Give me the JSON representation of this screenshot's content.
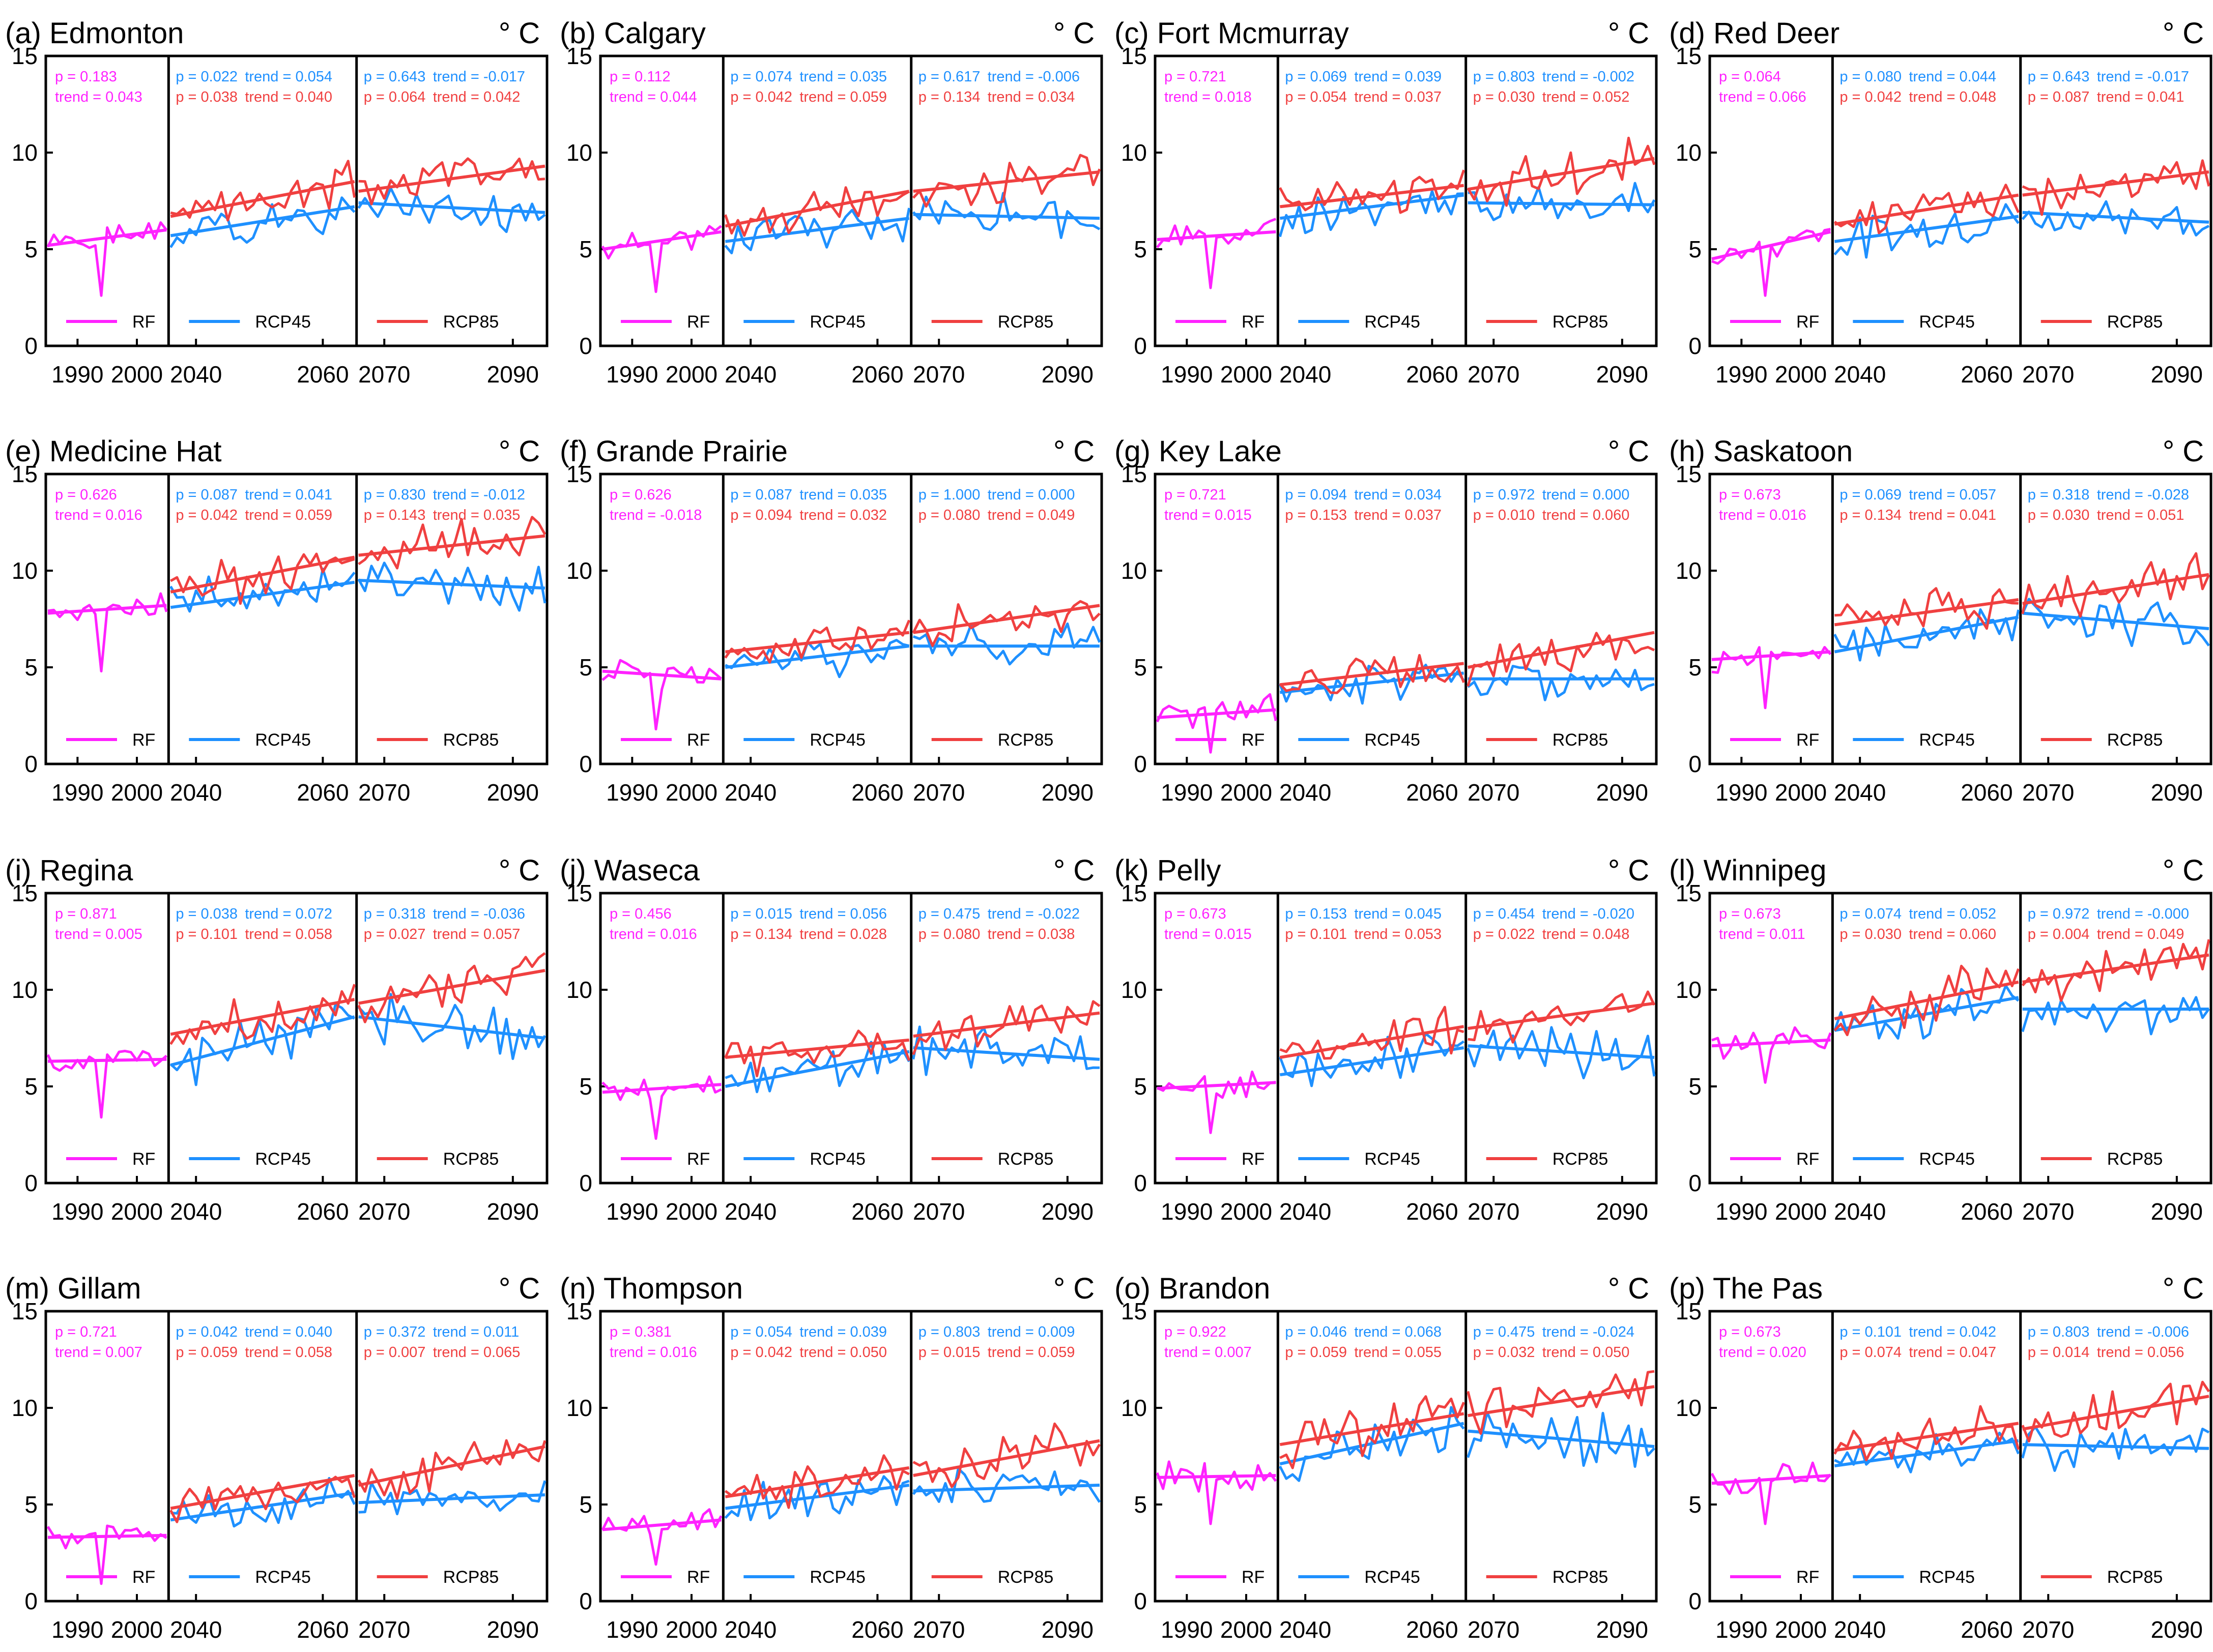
{
  "figure": {
    "unit": "° C",
    "colors": {
      "RF": "#ff22ff",
      "RCP45": "#1e90ff",
      "RCP85": "#f04040"
    },
    "legend": {
      "RF": "RF",
      "RCP45": "RCP45",
      "RCP85": "RCP85"
    },
    "stat_labels": {
      "p": "p = ",
      "trend": "trend = "
    },
    "periods": {
      "RF": {
        "start": 1985,
        "end": 2005,
        "ticks": [
          1990,
          2000
        ]
      },
      "RCP45": {
        "start": 2036,
        "end": 2065,
        "ticks": [
          2040,
          2060
        ]
      },
      "RCP85": {
        "start": 2066,
        "end": 2095,
        "ticks": [
          2070,
          2090
        ]
      }
    },
    "yticks": [
      0,
      5,
      10,
      15
    ]
  },
  "chart_data": [
    {
      "type": "line",
      "title": "(a) Edmonton",
      "xlabel": "",
      "ylabel": "° C",
      "ylim": [
        0,
        15
      ],
      "legend": "bottom",
      "rf": {
        "p": "0.183",
        "trend": "0.043",
        "seed": 1,
        "start": 5.2,
        "end": 6.0,
        "noise": 0.5,
        "drop": 2.6
      },
      "rcp45": {
        "p": "0.022",
        "trend": "0.054",
        "seed": 2,
        "start": 5.7,
        "end": 7.2,
        "noise": 0.9
      },
      "rcp85": {
        "p": "0.038",
        "trend": "0.040",
        "seed": 3,
        "start": 6.7,
        "end": 8.5,
        "noise": 0.9
      },
      "rcp45b": {
        "p": "0.643",
        "trend": "-0.017",
        "seed": 4,
        "start": 7.4,
        "end": 6.9,
        "noise": 0.9
      },
      "rcp85b": {
        "p": "0.064",
        "trend": "0.042",
        "seed": 5,
        "start": 8.0,
        "end": 9.3,
        "noise": 0.9
      }
    },
    {
      "type": "line",
      "title": "(b) Calgary",
      "xlabel": "",
      "ylabel": "° C",
      "ylim": [
        0,
        15
      ],
      "legend": "bottom",
      "rf": {
        "p": "0.112",
        "trend": "0.044",
        "seed": 11,
        "start": 5.0,
        "end": 5.9,
        "noise": 0.55,
        "drop": 2.8
      },
      "rcp45": {
        "p": "0.074",
        "trend": "0.035",
        "seed": 12,
        "start": 5.4,
        "end": 6.6,
        "noise": 0.9
      },
      "rcp85": {
        "p": "0.042",
        "trend": "0.059",
        "seed": 13,
        "start": 6.2,
        "end": 8.0,
        "noise": 0.9
      },
      "rcp45b": {
        "p": "0.617",
        "trend": "-0.006",
        "seed": 14,
        "start": 6.8,
        "end": 6.6,
        "noise": 0.9
      },
      "rcp85b": {
        "p": "0.134",
        "trend": "0.034",
        "seed": 15,
        "start": 8.0,
        "end": 9.0,
        "noise": 0.9
      }
    },
    {
      "type": "line",
      "title": "(c) Fort Mcmurray",
      "xlabel": "",
      "ylabel": "° C",
      "ylim": [
        0,
        15
      ],
      "legend": "bottom",
      "rf": {
        "p": "0.721",
        "trend": "0.018",
        "seed": 21,
        "start": 5.5,
        "end": 5.9,
        "noise": 0.6,
        "drop": 3.0
      },
      "rcp45": {
        "p": "0.069",
        "trend": "0.039",
        "seed": 22,
        "start": 6.6,
        "end": 7.8,
        "noise": 0.8
      },
      "rcp85": {
        "p": "0.054",
        "trend": "0.037",
        "seed": 23,
        "start": 7.2,
        "end": 8.3,
        "noise": 0.9
      },
      "rcp45b": {
        "p": "0.803",
        "trend": "-0.002",
        "seed": 24,
        "start": 7.4,
        "end": 7.3,
        "noise": 0.9
      },
      "rcp85b": {
        "p": "0.030",
        "trend": "0.052",
        "seed": 25,
        "start": 8.1,
        "end": 9.7,
        "noise": 1.0
      }
    },
    {
      "type": "line",
      "title": "(d) Red Deer",
      "xlabel": "",
      "ylabel": "° C",
      "ylim": [
        0,
        15
      ],
      "legend": "bottom",
      "rf": {
        "p": "0.064",
        "trend": "0.066",
        "seed": 31,
        "start": 4.5,
        "end": 5.9,
        "noise": 0.5,
        "drop": 2.6
      },
      "rcp45": {
        "p": "0.080",
        "trend": "0.044",
        "seed": 32,
        "start": 5.4,
        "end": 6.7,
        "noise": 0.9
      },
      "rcp85": {
        "p": "0.042",
        "trend": "0.048",
        "seed": 33,
        "start": 6.3,
        "end": 7.8,
        "noise": 0.9
      },
      "rcp45b": {
        "p": "0.643",
        "trend": "-0.017",
        "seed": 34,
        "start": 6.9,
        "end": 6.4,
        "noise": 0.9
      },
      "rcp85b": {
        "p": "0.087",
        "trend": "0.041",
        "seed": 35,
        "start": 7.8,
        "end": 9.0,
        "noise": 0.9
      }
    },
    {
      "type": "line",
      "title": "(e) Medicine Hat",
      "xlabel": "",
      "ylabel": "° C",
      "ylim": [
        0,
        15
      ],
      "legend": "bottom",
      "rf": {
        "p": "0.626",
        "trend": "0.016",
        "seed": 41,
        "start": 7.8,
        "end": 8.2,
        "noise": 0.6,
        "drop": 4.8
      },
      "rcp45": {
        "p": "0.087",
        "trend": "0.041",
        "seed": 42,
        "start": 8.1,
        "end": 9.4,
        "noise": 1.0
      },
      "rcp85": {
        "p": "0.042",
        "trend": "0.059",
        "seed": 43,
        "start": 8.9,
        "end": 10.7,
        "noise": 1.0
      },
      "rcp45b": {
        "p": "0.830",
        "trend": "-0.012",
        "seed": 44,
        "start": 9.5,
        "end": 9.1,
        "noise": 1.1
      },
      "rcp85b": {
        "p": "0.143",
        "trend": "0.035",
        "seed": 45,
        "start": 10.8,
        "end": 11.8,
        "noise": 1.0
      }
    },
    {
      "type": "line",
      "title": "(f) Grande Prairie",
      "xlabel": "",
      "ylabel": "° C",
      "ylim": [
        0,
        15
      ],
      "legend": "bottom",
      "rf": {
        "p": "0.626",
        "trend": "-0.018",
        "seed": 51,
        "start": 4.8,
        "end": 4.4,
        "noise": 0.6,
        "drop": 1.8
      },
      "rcp45": {
        "p": "0.087",
        "trend": "0.035",
        "seed": 52,
        "start": 5.0,
        "end": 6.1,
        "noise": 0.9
      },
      "rcp85": {
        "p": "0.094",
        "trend": "0.032",
        "seed": 53,
        "start": 5.8,
        "end": 6.8,
        "noise": 0.8
      },
      "rcp45b": {
        "p": "1.000",
        "trend": "0.000",
        "seed": 54,
        "start": 6.1,
        "end": 6.1,
        "noise": 1.0
      },
      "rcp85b": {
        "p": "0.080",
        "trend": "0.049",
        "seed": 55,
        "start": 6.8,
        "end": 8.2,
        "noise": 1.0
      }
    },
    {
      "type": "line",
      "title": "(g) Key Lake",
      "xlabel": "",
      "ylabel": "° C",
      "ylim": [
        0,
        15
      ],
      "legend": "bottom",
      "rf": {
        "p": "0.721",
        "trend": "0.015",
        "seed": 61,
        "start": 2.4,
        "end": 2.8,
        "noise": 0.7,
        "drop": 0.6
      },
      "rcp45": {
        "p": "0.094",
        "trend": "0.034",
        "seed": 62,
        "start": 3.7,
        "end": 4.7,
        "noise": 0.8
      },
      "rcp85": {
        "p": "0.153",
        "trend": "0.037",
        "seed": 63,
        "start": 4.1,
        "end": 5.2,
        "noise": 0.9
      },
      "rcp45b": {
        "p": "0.972",
        "trend": "0.000",
        "seed": 64,
        "start": 4.4,
        "end": 4.4,
        "noise": 0.9
      },
      "rcp85b": {
        "p": "0.010",
        "trend": "0.060",
        "seed": 65,
        "start": 5.0,
        "end": 6.8,
        "noise": 1.0
      }
    },
    {
      "type": "line",
      "title": "(h) Saskatoon",
      "xlabel": "",
      "ylabel": "° C",
      "ylim": [
        0,
        15
      ],
      "legend": "bottom",
      "rf": {
        "p": "0.673",
        "trend": "0.016",
        "seed": 71,
        "start": 5.4,
        "end": 5.8,
        "noise": 0.5,
        "drop": 2.9
      },
      "rcp45": {
        "p": "0.069",
        "trend": "0.057",
        "seed": 72,
        "start": 5.8,
        "end": 7.6,
        "noise": 0.9
      },
      "rcp85": {
        "p": "0.134",
        "trend": "0.041",
        "seed": 73,
        "start": 7.2,
        "end": 8.5,
        "noise": 1.0
      },
      "rcp45b": {
        "p": "0.318",
        "trend": "-0.028",
        "seed": 74,
        "start": 7.8,
        "end": 7.0,
        "noise": 1.1
      },
      "rcp85b": {
        "p": "0.030",
        "trend": "0.051",
        "seed": 75,
        "start": 8.3,
        "end": 9.8,
        "noise": 1.0
      }
    },
    {
      "type": "line",
      "title": "(i) Regina",
      "xlabel": "",
      "ylabel": "° C",
      "ylim": [
        0,
        15
      ],
      "legend": "bottom",
      "rf": {
        "p": "0.871",
        "trend": "0.005",
        "seed": 81,
        "start": 6.3,
        "end": 6.4,
        "noise": 0.6,
        "drop": 3.4
      },
      "rcp45": {
        "p": "0.038",
        "trend": "0.072",
        "seed": 82,
        "start": 6.1,
        "end": 8.6,
        "noise": 1.1
      },
      "rcp85": {
        "p": "0.101",
        "trend": "0.058",
        "seed": 83,
        "start": 7.7,
        "end": 9.5,
        "noise": 1.1
      },
      "rcp45b": {
        "p": "0.318",
        "trend": "-0.036",
        "seed": 84,
        "start": 8.6,
        "end": 7.5,
        "noise": 1.2
      },
      "rcp85b": {
        "p": "0.027",
        "trend": "0.057",
        "seed": 85,
        "start": 9.3,
        "end": 11.0,
        "noise": 1.0
      }
    },
    {
      "type": "line",
      "title": "(j) Waseca",
      "xlabel": "",
      "ylabel": "° C",
      "ylim": [
        0,
        15
      ],
      "legend": "bottom",
      "rf": {
        "p": "0.456",
        "trend": "0.016",
        "seed": 91,
        "start": 4.7,
        "end": 5.1,
        "noise": 0.5,
        "drop": 2.3
      },
      "rcp45": {
        "p": "0.015",
        "trend": "0.056",
        "seed": 92,
        "start": 5.0,
        "end": 6.8,
        "noise": 0.9
      },
      "rcp85": {
        "p": "0.134",
        "trend": "0.028",
        "seed": 93,
        "start": 6.5,
        "end": 7.4,
        "noise": 0.9
      },
      "rcp45b": {
        "p": "0.475",
        "trend": "-0.022",
        "seed": 94,
        "start": 7.0,
        "end": 6.4,
        "noise": 1.1
      },
      "rcp85b": {
        "p": "0.080",
        "trend": "0.038",
        "seed": 95,
        "start": 7.6,
        "end": 8.8,
        "noise": 0.9
      }
    },
    {
      "type": "line",
      "title": "(k) Pelly",
      "xlabel": "",
      "ylabel": "° C",
      "ylim": [
        0,
        15
      ],
      "legend": "bottom",
      "rf": {
        "p": "0.673",
        "trend": "0.015",
        "seed": 101,
        "start": 4.9,
        "end": 5.2,
        "noise": 0.6,
        "drop": 2.6
      },
      "rcp45": {
        "p": "0.153",
        "trend": "0.045",
        "seed": 102,
        "start": 5.6,
        "end": 7.0,
        "noise": 1.0
      },
      "rcp85": {
        "p": "0.101",
        "trend": "0.053",
        "seed": 103,
        "start": 6.5,
        "end": 8.1,
        "noise": 1.0
      },
      "rcp45b": {
        "p": "0.454",
        "trend": "-0.020",
        "seed": 104,
        "start": 7.1,
        "end": 6.5,
        "noise": 1.1
      },
      "rcp85b": {
        "p": "0.022",
        "trend": "0.048",
        "seed": 105,
        "start": 8.0,
        "end": 9.3,
        "noise": 0.9
      }
    },
    {
      "type": "line",
      "title": "(l) Winnipeg",
      "xlabel": "",
      "ylabel": "° C",
      "ylim": [
        0,
        15
      ],
      "legend": "bottom",
      "rf": {
        "p": "0.673",
        "trend": "0.011",
        "seed": 111,
        "start": 7.1,
        "end": 7.4,
        "noise": 0.6,
        "drop": 5.2
      },
      "rcp45": {
        "p": "0.074",
        "trend": "0.052",
        "seed": 112,
        "start": 7.9,
        "end": 9.6,
        "noise": 1.0
      },
      "rcp85": {
        "p": "0.030",
        "trend": "0.060",
        "seed": 113,
        "start": 8.5,
        "end": 10.4,
        "noise": 1.1
      },
      "rcp45b": {
        "p": "0.972",
        "trend": "-0.000",
        "seed": 114,
        "start": 9.0,
        "end": 9.0,
        "noise": 1.1
      },
      "rcp85b": {
        "p": "0.004",
        "trend": "0.049",
        "seed": 115,
        "start": 10.4,
        "end": 11.8,
        "noise": 1.0
      }
    },
    {
      "type": "line",
      "title": "(m) Gillam",
      "xlabel": "",
      "ylabel": "° C",
      "ylim": [
        0,
        15
      ],
      "legend": "bottom",
      "rf": {
        "p": "0.721",
        "trend": "0.007",
        "seed": 121,
        "start": 3.3,
        "end": 3.4,
        "noise": 0.6,
        "drop": 0.9
      },
      "rcp45": {
        "p": "0.042",
        "trend": "0.040",
        "seed": 122,
        "start": 4.2,
        "end": 5.6,
        "noise": 0.9
      },
      "rcp85": {
        "p": "0.059",
        "trend": "0.058",
        "seed": 123,
        "start": 4.8,
        "end": 6.5,
        "noise": 0.9
      },
      "rcp45b": {
        "p": "0.372",
        "trend": "0.011",
        "seed": 124,
        "start": 5.1,
        "end": 5.5,
        "noise": 0.8
      },
      "rcp85b": {
        "p": "0.007",
        "trend": "0.065",
        "seed": 125,
        "start": 6.0,
        "end": 8.0,
        "noise": 1.0
      }
    },
    {
      "type": "line",
      "title": "(n) Thompson",
      "xlabel": "",
      "ylabel": "° C",
      "ylim": [
        0,
        15
      ],
      "legend": "bottom",
      "rf": {
        "p": "0.381",
        "trend": "0.016",
        "seed": 131,
        "start": 3.7,
        "end": 4.2,
        "noise": 0.6,
        "drop": 1.9
      },
      "rcp45": {
        "p": "0.054",
        "trend": "0.039",
        "seed": 132,
        "start": 4.8,
        "end": 6.0,
        "noise": 0.9
      },
      "rcp85": {
        "p": "0.042",
        "trend": "0.050",
        "seed": 133,
        "start": 5.4,
        "end": 6.9,
        "noise": 0.9
      },
      "rcp45b": {
        "p": "0.803",
        "trend": "0.009",
        "seed": 134,
        "start": 5.7,
        "end": 6.0,
        "noise": 0.9
      },
      "rcp85b": {
        "p": "0.015",
        "trend": "0.059",
        "seed": 135,
        "start": 6.5,
        "end": 8.3,
        "noise": 1.0
      }
    },
    {
      "type": "line",
      "title": "(o) Brandon",
      "xlabel": "",
      "ylabel": "° C",
      "ylim": [
        0,
        15
      ],
      "legend": "bottom",
      "rf": {
        "p": "0.922",
        "trend": "0.007",
        "seed": 141,
        "start": 6.4,
        "end": 6.5,
        "noise": 0.6,
        "drop": 4.0
      },
      "rcp45": {
        "p": "0.046",
        "trend": "0.068",
        "seed": 142,
        "start": 7.1,
        "end": 9.2,
        "noise": 1.1
      },
      "rcp85": {
        "p": "0.059",
        "trend": "0.055",
        "seed": 143,
        "start": 8.1,
        "end": 9.7,
        "noise": 1.1
      },
      "rcp45b": {
        "p": "0.475",
        "trend": "-0.024",
        "seed": 144,
        "start": 8.8,
        "end": 8.0,
        "noise": 1.2
      },
      "rcp85b": {
        "p": "0.032",
        "trend": "0.050",
        "seed": 145,
        "start": 9.6,
        "end": 11.1,
        "noise": 1.1
      }
    },
    {
      "type": "line",
      "title": "(p) The Pas",
      "xlabel": "",
      "ylabel": "° C",
      "ylim": [
        0,
        15
      ],
      "legend": "bottom",
      "rf": {
        "p": "0.673",
        "trend": "0.020",
        "seed": 151,
        "start": 6.1,
        "end": 6.5,
        "noise": 0.6,
        "drop": 4.0
      },
      "rcp45": {
        "p": "0.101",
        "trend": "0.042",
        "seed": 152,
        "start": 7.0,
        "end": 8.3,
        "noise": 0.9
      },
      "rcp85": {
        "p": "0.074",
        "trend": "0.047",
        "seed": 153,
        "start": 7.8,
        "end": 9.2,
        "noise": 1.0
      },
      "rcp45b": {
        "p": "0.803",
        "trend": "-0.006",
        "seed": 154,
        "start": 8.1,
        "end": 7.9,
        "noise": 1.0
      },
      "rcp85b": {
        "p": "0.014",
        "trend": "0.056",
        "seed": 155,
        "start": 8.9,
        "end": 10.6,
        "noise": 1.1
      }
    }
  ]
}
